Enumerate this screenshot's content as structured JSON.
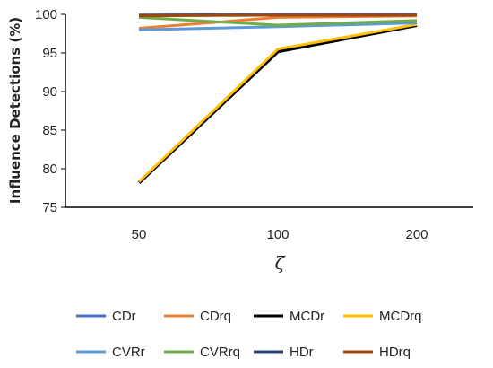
{
  "chart_data": {
    "type": "line",
    "title": "",
    "xlabel": "ζ",
    "ylabel": "Influence Detections (%)",
    "categories": [
      "50",
      "100",
      "200"
    ],
    "ylim": [
      75,
      100
    ],
    "yticks": [
      75,
      80,
      85,
      90,
      95,
      100
    ],
    "grid": false,
    "legend_position": "bottom",
    "series": [
      {
        "name": "CDr",
        "color": "#4472C4",
        "values": [
          99.9,
          100.0,
          100.0
        ]
      },
      {
        "name": "CDrq",
        "color": "#ED7D31",
        "values": [
          98.2,
          99.6,
          99.8
        ]
      },
      {
        "name": "MCDr",
        "color": "#000000",
        "values": [
          78.2,
          95.2,
          98.6
        ]
      },
      {
        "name": "MCDrq",
        "color": "#FFC000",
        "values": [
          78.3,
          95.5,
          98.7
        ]
      },
      {
        "name": "CVRr",
        "color": "#5B9BD5",
        "values": [
          98.0,
          98.4,
          98.9
        ]
      },
      {
        "name": "CVRrq",
        "color": "#70AD47",
        "values": [
          99.6,
          98.6,
          99.2
        ]
      },
      {
        "name": "HDr",
        "color": "#264478",
        "values": [
          99.9,
          99.9,
          99.9
        ]
      },
      {
        "name": "HDrq",
        "color": "#9E480E",
        "values": [
          99.8,
          99.9,
          99.9
        ]
      }
    ]
  }
}
